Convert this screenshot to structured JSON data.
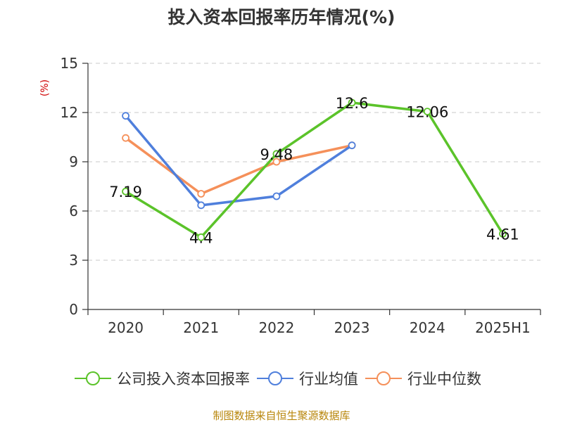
{
  "chart_data": {
    "type": "line",
    "title": "投入资本回报率历年情况(%)",
    "ylabel": "(%)",
    "categories": [
      "2020",
      "2021",
      "2022",
      "2023",
      "2024",
      "2025H1"
    ],
    "ylim": [
      0,
      15
    ],
    "yticks": [
      "0",
      "3",
      "6",
      "9",
      "12",
      "15"
    ],
    "grid": true,
    "legend_position": "bottom",
    "series": [
      {
        "name": "公司投入资本回报率",
        "color": "#5bc32a",
        "values": [
          7.19,
          4.4,
          9.48,
          12.6,
          12.06,
          4.61
        ],
        "labels": [
          "7.19",
          "4.4",
          "9.48",
          "12.6",
          "12.06",
          "4.61"
        ]
      },
      {
        "name": "行业均值",
        "color": "#4f7fdc",
        "values": [
          11.8,
          6.35,
          6.9,
          10.0,
          null,
          null
        ]
      },
      {
        "name": "行业中位数",
        "color": "#f5905a",
        "values": [
          10.45,
          7.05,
          9.0,
          10.0,
          null,
          null
        ]
      }
    ]
  },
  "source": "制图数据来自恒生聚源数据库"
}
